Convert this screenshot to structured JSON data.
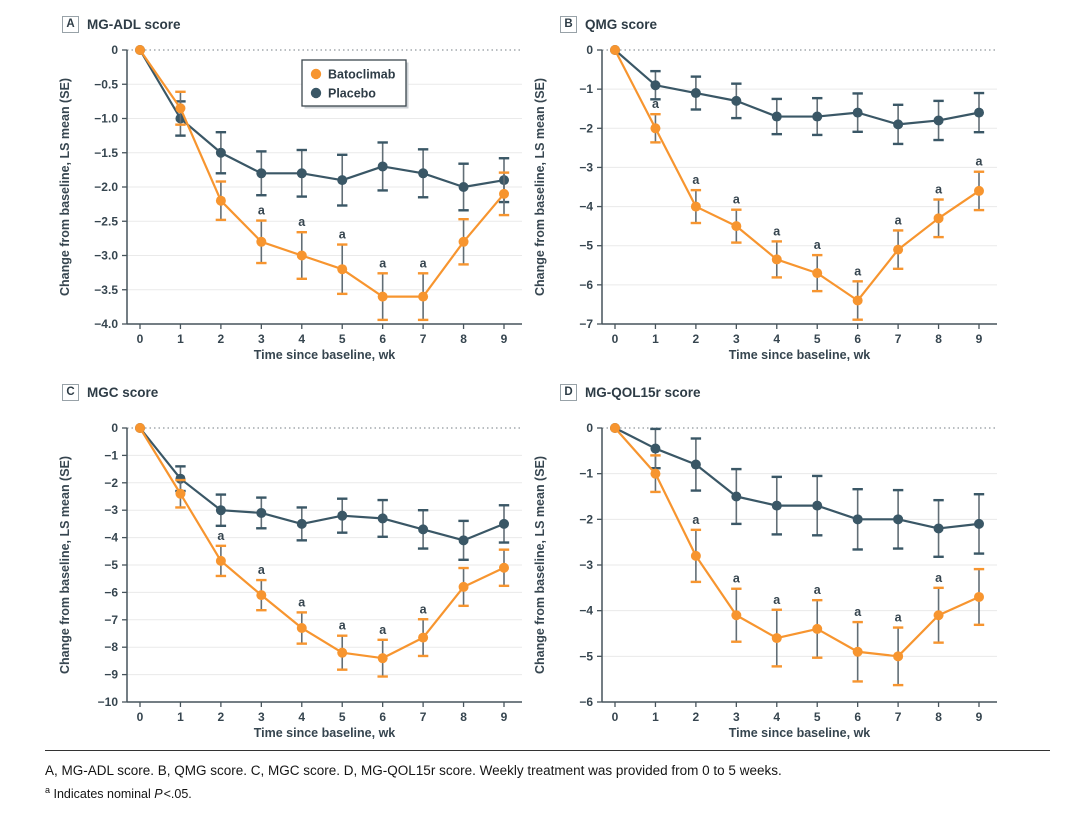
{
  "figure": {
    "footer": {
      "caption": "A, MG-ADL score. B, QMG score. C, MGC score. D, MG-QOL15r score. Weekly treatment was provided from 0 to 5 weeks.",
      "footnote_marker": "a",
      "footnote_before": " Indicates nominal ",
      "footnote_p": "P",
      "footnote_after": "<.05."
    },
    "style": {
      "batoclimab_color": "#F7952F",
      "placebo_color": "#3A5766",
      "stem_color": "#626E76",
      "grid_color": "#EAEAEA",
      "axis_color": "#47545C",
      "zero_line_color": "#90989D",
      "text_color": "#36454F",
      "title_color": "#2E3C46",
      "legend_border_color": "#3C474F",
      "legend_shadow_color": "#CDD2D6"
    }
  },
  "chart_data": [
    {
      "type": "line",
      "panel_letter": "A",
      "title": "MG-ADL score",
      "xlabel": "Time since baseline, wk",
      "ylabel": "Change from baseline, LS mean (SE)",
      "sig_marker": "a",
      "show_legend": true,
      "x": [
        0,
        1,
        2,
        3,
        4,
        5,
        6,
        7,
        8,
        9
      ],
      "ylim": [
        -4,
        0
      ],
      "yticks": [
        0,
        -0.5,
        -1,
        -1.5,
        -2,
        -2.5,
        -3,
        -3.5,
        -4
      ],
      "ytick_labels": [
        "0",
        "−0.5",
        "−1.0",
        "−1.5",
        "−2.0",
        "−2.5",
        "−3.0",
        "−3.5",
        "−4.0"
      ],
      "series": [
        {
          "name": "Batoclimab",
          "color": "#F7952F",
          "values": [
            0,
            -0.85,
            -2.2,
            -2.8,
            -3.0,
            -3.2,
            -3.6,
            -3.6,
            -2.8,
            -2.1
          ],
          "se": [
            0,
            0.24,
            0.28,
            0.31,
            0.34,
            0.36,
            0.34,
            0.34,
            0.33,
            0.31
          ],
          "sig_weeks": [
            3,
            4,
            5,
            6,
            7
          ]
        },
        {
          "name": "Placebo",
          "color": "#3A5766",
          "values": [
            0,
            -1.0,
            -1.5,
            -1.8,
            -1.8,
            -1.9,
            -1.7,
            -1.8,
            -2.0,
            -1.9
          ],
          "se": [
            0,
            0.25,
            0.3,
            0.32,
            0.34,
            0.37,
            0.35,
            0.35,
            0.34,
            0.32
          ],
          "sig_weeks": []
        }
      ]
    },
    {
      "type": "line",
      "panel_letter": "B",
      "title": "QMG score",
      "xlabel": "Time since baseline, wk",
      "ylabel": "Change from baseline, LS mean (SE)",
      "sig_marker": "a",
      "show_legend": false,
      "x": [
        0,
        1,
        2,
        3,
        4,
        5,
        6,
        7,
        8,
        9
      ],
      "ylim": [
        -7,
        0
      ],
      "yticks": [
        0,
        -1,
        -2,
        -3,
        -4,
        -5,
        -6,
        -7
      ],
      "ytick_labels": [
        "0",
        "−1",
        "−2",
        "−3",
        "−4",
        "−5",
        "−6",
        "−7"
      ],
      "series": [
        {
          "name": "Batoclimab",
          "color": "#F7952F",
          "values": [
            0,
            -2.0,
            -4.0,
            -4.5,
            -5.35,
            -5.7,
            -6.4,
            -5.1,
            -4.3,
            -3.6
          ],
          "se": [
            0,
            0.36,
            0.42,
            0.42,
            0.46,
            0.46,
            0.49,
            0.49,
            0.48,
            0.49
          ],
          "sig_weeks": [
            1,
            2,
            3,
            4,
            5,
            6,
            7,
            8,
            9
          ]
        },
        {
          "name": "Placebo",
          "color": "#3A5766",
          "values": [
            0,
            -0.9,
            -1.1,
            -1.3,
            -1.7,
            -1.7,
            -1.6,
            -1.9,
            -1.8,
            -1.6
          ],
          "se": [
            0,
            0.36,
            0.42,
            0.44,
            0.45,
            0.47,
            0.49,
            0.5,
            0.5,
            0.5
          ],
          "sig_weeks": []
        }
      ]
    },
    {
      "type": "line",
      "panel_letter": "C",
      "title": "MGC score",
      "xlabel": "Time since baseline, wk",
      "ylabel": "Change from baseline, LS mean (SE)",
      "sig_marker": "a",
      "show_legend": false,
      "x": [
        0,
        1,
        2,
        3,
        4,
        5,
        6,
        7,
        8,
        9
      ],
      "ylim": [
        -10,
        0
      ],
      "yticks": [
        0,
        -1,
        -2,
        -3,
        -4,
        -5,
        -6,
        -7,
        -8,
        -9,
        -10
      ],
      "ytick_labels": [
        "0",
        "−1",
        "−2",
        "−3",
        "−4",
        "−5",
        "−6",
        "−7",
        "−8",
        "−9",
        "−10"
      ],
      "series": [
        {
          "name": "Batoclimab",
          "color": "#F7952F",
          "values": [
            0,
            -2.4,
            -4.85,
            -6.1,
            -7.3,
            -8.2,
            -8.4,
            -7.65,
            -5.8,
            -5.1
          ],
          "se": [
            0,
            0.5,
            0.55,
            0.55,
            0.57,
            0.62,
            0.67,
            0.67,
            0.69,
            0.66
          ],
          "sig_weeks": [
            2,
            3,
            4,
            5,
            6,
            7
          ]
        },
        {
          "name": "Placebo",
          "color": "#3A5766",
          "values": [
            0,
            -1.85,
            -3.0,
            -3.1,
            -3.5,
            -3.2,
            -3.3,
            -3.7,
            -4.1,
            -3.5
          ],
          "se": [
            0,
            0.45,
            0.57,
            0.56,
            0.6,
            0.62,
            0.67,
            0.7,
            0.71,
            0.68
          ],
          "sig_weeks": []
        }
      ]
    },
    {
      "type": "line",
      "panel_letter": "D",
      "title": "MG-QOL15r score",
      "xlabel": "Time since baseline, wk",
      "ylabel": "Change from baseline, LS mean (SE)",
      "sig_marker": "a",
      "show_legend": false,
      "x": [
        0,
        1,
        2,
        3,
        4,
        5,
        6,
        7,
        8,
        9
      ],
      "ylim": [
        -6,
        0
      ],
      "yticks": [
        0,
        -1,
        -2,
        -3,
        -4,
        -5,
        -6
      ],
      "ytick_labels": [
        "0",
        "−1",
        "−2",
        "−3",
        "−4",
        "−5",
        "−6"
      ],
      "series": [
        {
          "name": "Batoclimab",
          "color": "#F7952F",
          "values": [
            0,
            -1.0,
            -2.8,
            -4.1,
            -4.6,
            -4.4,
            -4.9,
            -5.0,
            -4.1,
            -3.7
          ],
          "se": [
            0,
            0.4,
            0.57,
            0.58,
            0.62,
            0.63,
            0.65,
            0.63,
            0.6,
            0.61
          ],
          "sig_weeks": [
            2,
            3,
            4,
            5,
            6,
            7,
            8
          ]
        },
        {
          "name": "Placebo",
          "color": "#3A5766",
          "values": [
            0,
            -0.45,
            -0.8,
            -1.5,
            -1.7,
            -1.7,
            -2.0,
            -2.0,
            -2.2,
            -2.1
          ],
          "se": [
            0,
            0.43,
            0.57,
            0.6,
            0.63,
            0.65,
            0.66,
            0.64,
            0.62,
            0.65
          ],
          "sig_weeks": []
        }
      ]
    }
  ]
}
